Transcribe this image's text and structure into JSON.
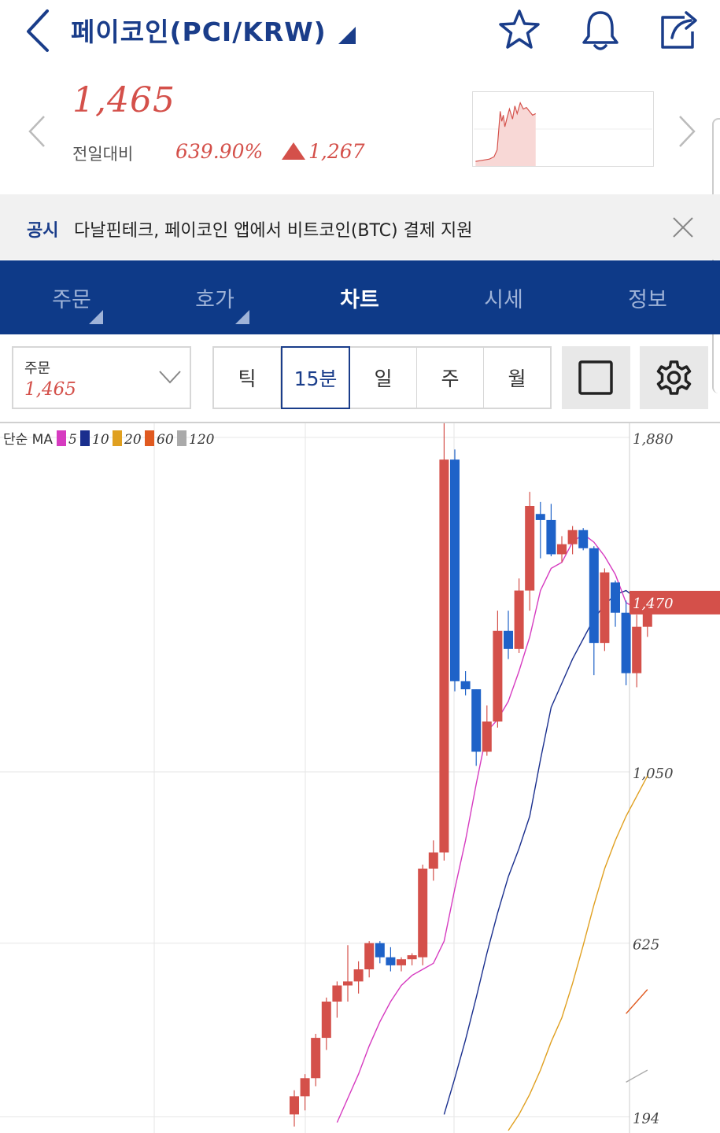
{
  "header": {
    "title": "페이코인(PCI/KRW)",
    "icons": [
      "back-chevron-icon",
      "dropdown-triangle-icon",
      "star-icon",
      "bell-icon",
      "share-icon"
    ]
  },
  "price": {
    "current": "1,465",
    "change_label": "전일대비",
    "change_rate": "639.90%",
    "change_amount": "1,267",
    "direction": "up"
  },
  "notice": {
    "tag": "공시",
    "text": "다날핀테크, 페이코인 앱에서 비트코인(BTC) 결제 지원"
  },
  "tabs": [
    {
      "label": "주문",
      "active": false,
      "has_dropdown": true
    },
    {
      "label": "호가",
      "active": false,
      "has_dropdown": true
    },
    {
      "label": "차트",
      "active": true,
      "has_dropdown": false
    },
    {
      "label": "시세",
      "active": false,
      "has_dropdown": false
    },
    {
      "label": "정보",
      "active": false,
      "has_dropdown": false
    }
  ],
  "order": {
    "label": "주문",
    "value": "1,465"
  },
  "periods": [
    {
      "label": "틱",
      "active": false
    },
    {
      "label": "15분",
      "active": true
    },
    {
      "label": "일",
      "active": false
    },
    {
      "label": "주",
      "active": false
    },
    {
      "label": "월",
      "active": false
    }
  ],
  "colors": {
    "brand": "#0e3a88",
    "up": "#d4504a",
    "down": "#1e62c8",
    "ma5": "#d63bc0",
    "ma10": "#1a2f8e",
    "ma20": "#e0a020",
    "ma60": "#e05a20",
    "ma120": "#aaaaaa"
  },
  "chart_data": {
    "type": "candlestick",
    "legend_title": "단순 MA",
    "ma_periods": [
      "5",
      "10",
      "20",
      "60",
      "120"
    ],
    "y_ticks": [
      "1,880",
      "1,050",
      "625",
      "194"
    ],
    "y_tick_values": [
      1880,
      1050,
      625,
      194
    ],
    "current_price_label": "1,470",
    "current_price_value": 1470,
    "ylim": [
      150,
      1915
    ],
    "candles": [
      {
        "o": 200,
        "h": 260,
        "l": 170,
        "c": 245
      },
      {
        "o": 245,
        "h": 300,
        "l": 210,
        "c": 290
      },
      {
        "o": 290,
        "h": 400,
        "l": 270,
        "c": 390
      },
      {
        "o": 390,
        "h": 490,
        "l": 360,
        "c": 480
      },
      {
        "o": 480,
        "h": 530,
        "l": 440,
        "c": 520
      },
      {
        "o": 520,
        "h": 620,
        "l": 480,
        "c": 530
      },
      {
        "o": 530,
        "h": 580,
        "l": 500,
        "c": 560
      },
      {
        "o": 560,
        "h": 630,
        "l": 540,
        "c": 625
      },
      {
        "o": 625,
        "h": 630,
        "l": 575,
        "c": 590
      },
      {
        "o": 590,
        "h": 615,
        "l": 555,
        "c": 570
      },
      {
        "o": 570,
        "h": 590,
        "l": 555,
        "c": 585
      },
      {
        "o": 585,
        "h": 600,
        "l": 570,
        "c": 595
      },
      {
        "o": 590,
        "h": 820,
        "l": 570,
        "c": 810
      },
      {
        "o": 810,
        "h": 880,
        "l": 780,
        "c": 850
      },
      {
        "o": 850,
        "h": 1920,
        "l": 830,
        "c": 1825
      },
      {
        "o": 1825,
        "h": 1850,
        "l": 1250,
        "c": 1275
      },
      {
        "o": 1275,
        "h": 1300,
        "l": 1240,
        "c": 1255
      },
      {
        "o": 1255,
        "h": 1255,
        "l": 1065,
        "c": 1100
      },
      {
        "o": 1100,
        "h": 1215,
        "l": 1090,
        "c": 1175
      },
      {
        "o": 1175,
        "h": 1450,
        "l": 1160,
        "c": 1400
      },
      {
        "o": 1400,
        "h": 1450,
        "l": 1330,
        "c": 1355
      },
      {
        "o": 1355,
        "h": 1530,
        "l": 1345,
        "c": 1500
      },
      {
        "o": 1500,
        "h": 1745,
        "l": 1450,
        "c": 1710
      },
      {
        "o": 1690,
        "h": 1720,
        "l": 1580,
        "c": 1675
      },
      {
        "o": 1675,
        "h": 1715,
        "l": 1585,
        "c": 1590
      },
      {
        "o": 1590,
        "h": 1635,
        "l": 1570,
        "c": 1615
      },
      {
        "o": 1615,
        "h": 1660,
        "l": 1590,
        "c": 1650
      },
      {
        "o": 1650,
        "h": 1655,
        "l": 1600,
        "c": 1605
      },
      {
        "o": 1605,
        "h": 1610,
        "l": 1290,
        "c": 1370
      },
      {
        "o": 1370,
        "h": 1555,
        "l": 1350,
        "c": 1545
      },
      {
        "o": 1520,
        "h": 1525,
        "l": 1410,
        "c": 1445
      },
      {
        "o": 1445,
        "h": 1475,
        "l": 1265,
        "c": 1295
      },
      {
        "o": 1295,
        "h": 1440,
        "l": 1260,
        "c": 1410
      },
      {
        "o": 1410,
        "h": 1495,
        "l": 1385,
        "c": 1470
      }
    ],
    "ma5": [
      null,
      null,
      null,
      null,
      180,
      240,
      300,
      370,
      430,
      480,
      520,
      545,
      560,
      575,
      630,
      760,
      880,
      1020,
      1150,
      1180,
      1225,
      1300,
      1385,
      1500,
      1555,
      1570,
      1620,
      1640,
      1620,
      1585,
      1540,
      1470,
      1455,
      1440
    ],
    "ma10": [
      null,
      null,
      null,
      null,
      null,
      null,
      null,
      null,
      null,
      null,
      null,
      null,
      null,
      null,
      200,
      290,
      385,
      490,
      600,
      700,
      790,
      860,
      940,
      1080,
      1210,
      1270,
      1330,
      1380,
      1430,
      1465,
      1490,
      1500,
      1480,
      1455
    ],
    "ma20": [
      null,
      null,
      null,
      null,
      null,
      null,
      null,
      null,
      null,
      null,
      null,
      null,
      null,
      null,
      null,
      null,
      null,
      null,
      null,
      null,
      160,
      200,
      250,
      310,
      380,
      440,
      525,
      620,
      720,
      810,
      880,
      940,
      990,
      1040
    ],
    "ma60": [
      null,
      null,
      null,
      null,
      null,
      null,
      null,
      null,
      null,
      null,
      null,
      null,
      null,
      null,
      null,
      null,
      null,
      null,
      null,
      null,
      null,
      null,
      null,
      null,
      null,
      null,
      null,
      null,
      null,
      null,
      null,
      450,
      480,
      510
    ],
    "ma120": [
      null,
      null,
      null,
      null,
      null,
      null,
      null,
      null,
      null,
      null,
      null,
      null,
      null,
      null,
      null,
      null,
      null,
      null,
      null,
      null,
      null,
      null,
      null,
      null,
      null,
      null,
      null,
      null,
      null,
      null,
      null,
      280,
      295,
      310
    ]
  }
}
